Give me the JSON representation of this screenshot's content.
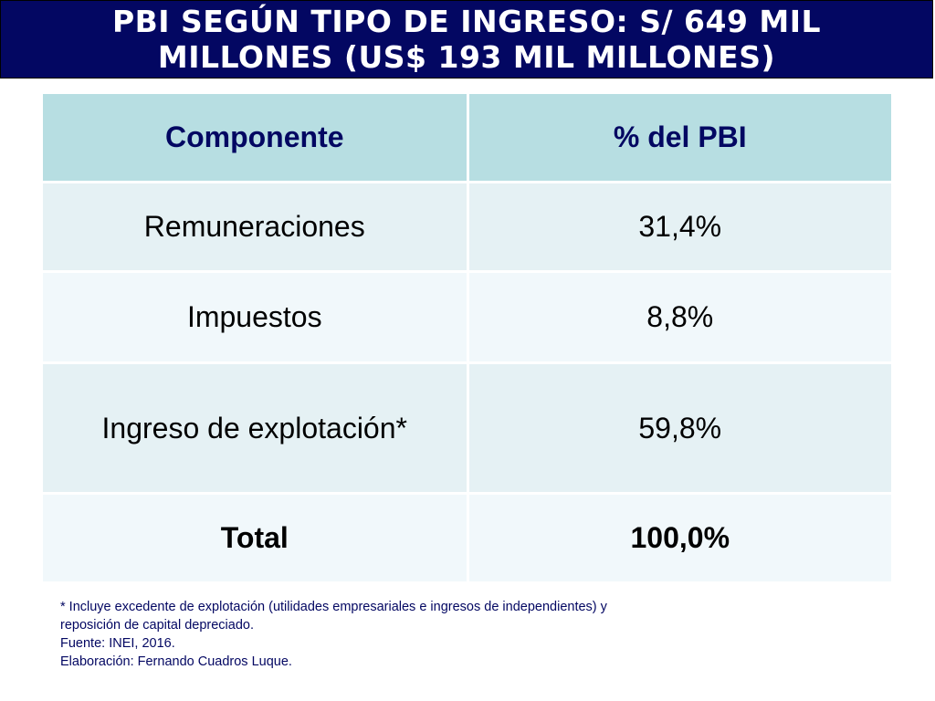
{
  "title": {
    "line1": "PBI SEGÚN TIPO DE INGRESO: S/ 649 MIL",
    "line2": "MILLONES (US$ 193 MIL MILLONES)"
  },
  "table": {
    "headers": [
      "Componente",
      "% del PBI"
    ],
    "rows": [
      [
        "Remuneraciones",
        "31,4%"
      ],
      [
        "Impuestos",
        "8,8%"
      ],
      [
        "Ingreso de explotación*",
        "59,8%"
      ],
      [
        "Total",
        "100,0%"
      ]
    ]
  },
  "notes": {
    "footnote_line1": "* Incluye excedente de explotación (utilidades empresariales e ingresos de independientes) y",
    "footnote_line2": "reposición de capital depreciado.",
    "source": "Fuente: INEI, 2016.",
    "author": "Elaboración: Fernando Cuadros Luque."
  },
  "colors": {
    "title_bg": "#030762",
    "header_bg": "#b7dee2",
    "row_odd_bg": "#e5f1f4",
    "row_even_bg": "#f1f8fb",
    "notes_text": "#030762"
  }
}
